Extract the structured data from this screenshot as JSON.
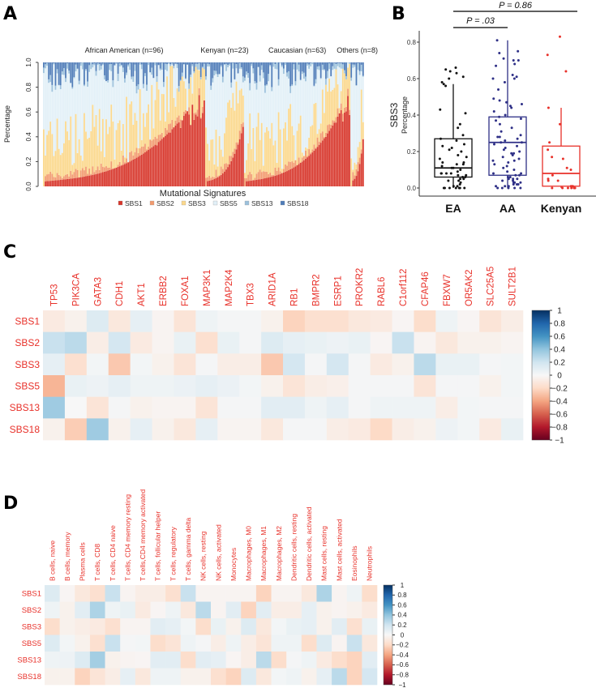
{
  "panels": {
    "a": "A",
    "b": "B",
    "c": "C",
    "d": "D"
  },
  "chart_data": [
    {
      "type": "bar",
      "stacked": true,
      "panel": "A",
      "xlabel": "Mutational Signatures",
      "ylabel": "Percentage",
      "ylim": [
        0,
        1
      ],
      "yticks": [
        "0.0",
        "0.2",
        "0.4",
        "0.6",
        "0.8",
        "1.0"
      ],
      "legend_position": "bottom",
      "signatures": [
        {
          "name": "SBS1",
          "color": "#d7352a"
        },
        {
          "name": "SBS2",
          "color": "#f29a6e"
        },
        {
          "name": "SBS3",
          "color": "#fbd88c"
        },
        {
          "name": "SBS5",
          "color": "#e2f0f7"
        },
        {
          "name": "SBS13",
          "color": "#9cc1dc"
        },
        {
          "name": "SBS18",
          "color": "#4f7cb8"
        }
      ],
      "groups": [
        {
          "label": "African American (n=96)",
          "n": 96,
          "sbs1_range": [
            0.0,
            0.76
          ]
        },
        {
          "label": "Kenyan (n=23)",
          "n": 23,
          "sbs1_range": [
            0.0,
            0.44
          ]
        },
        {
          "label": "Caucasian (n=63)",
          "n": 63,
          "sbs1_range": [
            0.0,
            0.72
          ]
        },
        {
          "label": "Others (n=8)",
          "n": 8,
          "sbs1_range": [
            0.0,
            0.34
          ]
        }
      ]
    },
    {
      "type": "box",
      "panel": "B",
      "ylabel_main": "SBS3",
      "ylabel_sub": "Percentage",
      "ylim": [
        0,
        0.85
      ],
      "yticks": [
        "0.0",
        "0.2",
        "0.4",
        "0.6",
        "0.8"
      ],
      "comparisons": [
        {
          "groups": [
            "EA",
            "AA"
          ],
          "label": "P = .03"
        },
        {
          "groups": [
            "EA",
            "Kenyan"
          ],
          "label": "P = 0.86"
        }
      ],
      "series": [
        {
          "name": "EA",
          "color": "#111111",
          "q1": 0.06,
          "median": 0.11,
          "q3": 0.27,
          "whisker_low": 0.0,
          "whisker_high": 0.57,
          "points": [
            0.66,
            0.65,
            0.64,
            0.63,
            0.61,
            0.6,
            0.58,
            0.57,
            0.56,
            0.43,
            0.41,
            0.35,
            0.33,
            0.29,
            0.27,
            0.26,
            0.24,
            0.23,
            0.22,
            0.21,
            0.2,
            0.18,
            0.17,
            0.16,
            0.14,
            0.14,
            0.13,
            0.13,
            0.12,
            0.11,
            0.11,
            0.1,
            0.09,
            0.08,
            0.08,
            0.08,
            0.08,
            0.07,
            0.07,
            0.06,
            0.06,
            0.05,
            0.05,
            0.04,
            0.04,
            0.03,
            0.02,
            0.01,
            0.01,
            0,
            0,
            0,
            0,
            0,
            0,
            0
          ]
        },
        {
          "name": "AA",
          "color": "#2e2f86",
          "q1": 0.07,
          "median": 0.25,
          "q3": 0.39,
          "whisker_low": 0.0,
          "whisker_high": 0.81,
          "points": [
            0.81,
            0.75,
            0.74,
            0.71,
            0.7,
            0.7,
            0.68,
            0.67,
            0.62,
            0.61,
            0.6,
            0.6,
            0.58,
            0.54,
            0.49,
            0.48,
            0.47,
            0.46,
            0.45,
            0.44,
            0.42,
            0.4,
            0.39,
            0.38,
            0.37,
            0.35,
            0.33,
            0.31,
            0.29,
            0.28,
            0.28,
            0.27,
            0.26,
            0.25,
            0.25,
            0.24,
            0.23,
            0.22,
            0.21,
            0.2,
            0.19,
            0.19,
            0.18,
            0.17,
            0.16,
            0.15,
            0.15,
            0.14,
            0.13,
            0.12,
            0.11,
            0.1,
            0.09,
            0.08,
            0.08,
            0.07,
            0.07,
            0.06,
            0.06,
            0.05,
            0.05,
            0.05,
            0.04,
            0.04,
            0.03,
            0.03,
            0.03,
            0.02,
            0.02,
            0.02,
            0.01,
            0.01,
            0.01,
            0,
            0,
            0,
            0,
            0
          ]
        },
        {
          "name": "Kenyan",
          "color": "#e8312a",
          "q1": 0.01,
          "median": 0.08,
          "q3": 0.23,
          "whisker_low": 0.0,
          "whisker_high": 0.44,
          "points": [
            0.83,
            0.73,
            0.64,
            0.44,
            0.35,
            0.25,
            0.21,
            0.17,
            0.16,
            0.11,
            0.1,
            0.07,
            0.05,
            0.04,
            0.04,
            0.01,
            0.01,
            0,
            0,
            0,
            0,
            0,
            0
          ]
        }
      ]
    },
    {
      "type": "heatmap",
      "panel": "C",
      "rows": [
        "SBS1",
        "SBS2",
        "SBS3",
        "SBS5",
        "SBS13",
        "SBS18"
      ],
      "columns": [
        "TP53",
        "PIK3CA",
        "GATA3",
        "CDH1",
        "AKT1",
        "ERBB2",
        "FOXA1",
        "MAP3K1",
        "MAP2K4",
        "TBX3",
        "ARID1A",
        "RB1",
        "BMPR2",
        "ESRP1",
        "PROKR2",
        "RABL6",
        "C1orf112",
        "CFAP46",
        "FBXW7",
        "OR5AK2",
        "SLC25A5",
        "SULT2B1"
      ],
      "values": [
        [
          -0.1,
          -0.05,
          0.15,
          -0.12,
          0.1,
          -0.03,
          -0.15,
          0.05,
          0.02,
          0.02,
          -0.05,
          -0.25,
          -0.18,
          -0.18,
          -0.12,
          -0.1,
          -0.02,
          -0.2,
          0.05,
          -0.02,
          -0.15,
          -0.08
        ],
        [
          0.25,
          0.3,
          -0.08,
          0.2,
          -0.1,
          -0.03,
          0.08,
          -0.18,
          0.08,
          0.02,
          0.15,
          0.1,
          0.08,
          0.06,
          0.08,
          -0.02,
          0.25,
          -0.03,
          -0.12,
          -0.05,
          -0.05,
          -0.03
        ],
        [
          0.1,
          -0.18,
          0.03,
          -0.3,
          0.03,
          -0.05,
          -0.15,
          0.02,
          -0.08,
          -0.08,
          -0.3,
          0.2,
          0.02,
          0.2,
          0.02,
          -0.1,
          -0.05,
          0.3,
          0.08,
          0.08,
          0.02,
          0.03
        ],
        [
          -0.38,
          0.08,
          0.06,
          0.1,
          0.05,
          0.05,
          0.07,
          0.1,
          0.07,
          0.03,
          -0.05,
          -0.15,
          -0.08,
          -0.06,
          0.02,
          0.02,
          0.02,
          -0.15,
          0.02,
          0.02,
          -0.05,
          0.03
        ],
        [
          0.4,
          0.0,
          -0.15,
          0.02,
          -0.05,
          -0.03,
          -0.03,
          -0.15,
          0.02,
          0.02,
          0.12,
          0.12,
          0.05,
          0.1,
          0.02,
          0.05,
          0.05,
          0.05,
          -0.08,
          0.03,
          0.02,
          0.02
        ],
        [
          -0.05,
          -0.28,
          0.4,
          -0.05,
          0.1,
          -0.05,
          -0.12,
          0.1,
          -0.03,
          -0.03,
          -0.12,
          0.02,
          0.02,
          -0.08,
          -0.1,
          -0.22,
          -0.08,
          -0.05,
          0.06,
          0.03,
          -0.1,
          0.08
        ]
      ],
      "colorbar_ticks": [
        "1",
        "0.8",
        "0.6",
        "0.4",
        "0.2",
        "0",
        "−0.2",
        "−0.4",
        "−0.6",
        "−0.8",
        "−1"
      ],
      "range": [
        -1,
        1
      ]
    },
    {
      "type": "heatmap",
      "panel": "D",
      "rows": [
        "SBS1",
        "SBS2",
        "SBS3",
        "SBS5",
        "SBS13",
        "SBS18"
      ],
      "columns": [
        "B cells, naive",
        "B cells, memory",
        "Plasma cells",
        "T cells, CD8",
        "T cells, CD4 naive",
        "T cells, CD4 memory resting",
        "T cells,CD4 memory activated",
        "T cells, follicular helper",
        "T cells, regulatory",
        "T cells, gamma delta",
        "NK cells, resting",
        "NK cells, activated",
        "Monocytes",
        "Macrophages, M0",
        "Macrophages, M1",
        "Macrophages, M2",
        "Dendritic cells, resting",
        "Dendritic cells, activated",
        "Mast cells, resting",
        "Mast cells, activated",
        "Eosinophils",
        "Neutrophils"
      ],
      "values": [
        [
          0.15,
          -0.02,
          -0.12,
          -0.18,
          0.25,
          -0.03,
          -0.08,
          -0.08,
          -0.18,
          0.25,
          -0.03,
          -0.03,
          -0.03,
          -0.03,
          -0.25,
          -0.03,
          -0.03,
          -0.12,
          0.35,
          -0.03,
          0.05,
          -0.2
        ],
        [
          0.05,
          -0.05,
          0.12,
          0.35,
          0.05,
          0.08,
          -0.1,
          -0.02,
          0.05,
          -0.12,
          0.3,
          -0.03,
          0.12,
          -0.25,
          0.12,
          -0.08,
          -0.08,
          0.1,
          -0.05,
          -0.03,
          -0.05,
          -0.1
        ],
        [
          -0.2,
          -0.05,
          -0.08,
          -0.1,
          -0.18,
          -0.03,
          -0.03,
          0.12,
          0.1,
          0.03,
          -0.2,
          0.08,
          -0.05,
          0.15,
          -0.12,
          0.03,
          0.08,
          0.1,
          -0.05,
          0.12,
          -0.18,
          0.08
        ],
        [
          0.15,
          0.03,
          -0.05,
          -0.18,
          0.25,
          0.02,
          0.03,
          -0.2,
          -0.15,
          0.05,
          0.02,
          -0.08,
          0.05,
          -0.08,
          -0.15,
          0.05,
          0.05,
          -0.2,
          0.15,
          -0.03,
          0.25,
          -0.12
        ],
        [
          0.05,
          0.06,
          0.15,
          0.38,
          -0.05,
          -0.03,
          -0.02,
          0.12,
          0.12,
          -0.2,
          0.12,
          0.1,
          -0.02,
          -0.08,
          0.3,
          -0.2,
          0.02,
          0.05,
          -0.1,
          -0.2,
          -0.25,
          0.12
        ],
        [
          -0.05,
          -0.05,
          -0.25,
          -0.15,
          -0.08,
          0.1,
          -0.12,
          0.05,
          0.05,
          -0.05,
          -0.05,
          -0.18,
          -0.25,
          0.15,
          -0.12,
          0.03,
          0.05,
          -0.05,
          0.1,
          0.3,
          -0.25,
          0.2
        ]
      ],
      "colorbar_ticks": [
        "1",
        "0.8",
        "0.6",
        "0.4",
        "0.2",
        "0",
        "−0.2",
        "−0.4",
        "−0.6",
        "−0.8",
        "−1"
      ],
      "range": [
        -1,
        1
      ]
    }
  ]
}
